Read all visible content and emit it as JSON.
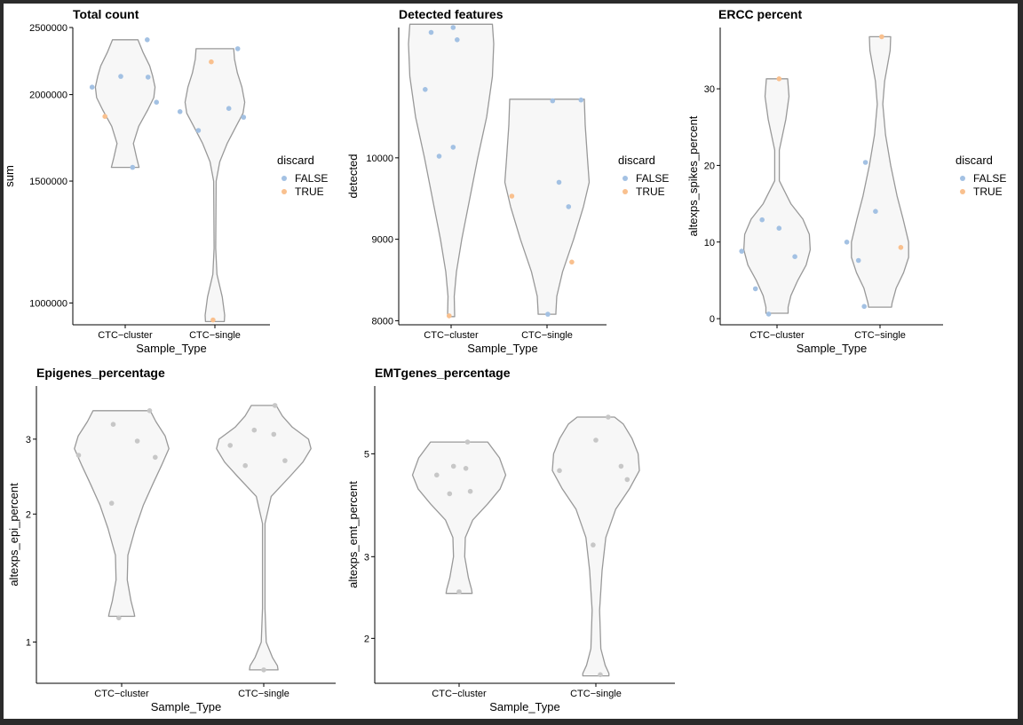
{
  "colors": {
    "false": "#a3c1e3",
    "true": "#f9c08e",
    "grey": "#c7c7c7",
    "violin_fill": "#f7f7f7",
    "violin_stroke": "#999999"
  },
  "legend": {
    "title": "discard",
    "false_label": "FALSE",
    "true_label": "TRUE"
  },
  "chart_data": [
    {
      "type": "violin",
      "title": "Total count",
      "xlabel": "Sample_Type",
      "ylabel": "sum",
      "scale": "log10",
      "ylim": [
        930000,
        2500000
      ],
      "yticks": [
        1000000,
        1500000,
        2000000,
        2500000
      ],
      "ytick_labels": [
        "1000000",
        "1500000",
        "2000000",
        "2500000"
      ],
      "categories": [
        "CTC−cluster",
        "CTC−single"
      ],
      "legend": true,
      "violin_profiles": [
        [
          [
            2400000,
            0.31
          ],
          [
            2300000,
            0.44
          ],
          [
            2200000,
            0.6
          ],
          [
            2130000,
            0.67
          ],
          [
            2050000,
            0.73
          ],
          [
            1980000,
            0.7
          ],
          [
            1900000,
            0.55
          ],
          [
            1800000,
            0.33
          ],
          [
            1700000,
            0.2
          ],
          [
            1620000,
            0.28
          ],
          [
            1570000,
            0.34
          ]
        ],
        [
          [
            2330000,
            0.46
          ],
          [
            2250000,
            0.48
          ],
          [
            2150000,
            0.55
          ],
          [
            2050000,
            0.66
          ],
          [
            1950000,
            0.73
          ],
          [
            1880000,
            0.69
          ],
          [
            1800000,
            0.52
          ],
          [
            1700000,
            0.3
          ],
          [
            1600000,
            0.12
          ],
          [
            1500000,
            0.03
          ],
          [
            1200000,
            0.02
          ],
          [
            1100000,
            0.05
          ],
          [
            1020000,
            0.18
          ],
          [
            960000,
            0.24
          ],
          [
            940000,
            0.23
          ]
        ]
      ],
      "points": [
        {
          "cat": 0,
          "jx": 0.6,
          "y": 2400000,
          "discard": false
        },
        {
          "cat": 0,
          "jx": 0.62,
          "y": 2120000,
          "discard": false
        },
        {
          "cat": 0,
          "jx": -0.12,
          "y": 2125000,
          "discard": false
        },
        {
          "cat": 0,
          "jx": -0.9,
          "y": 2050000,
          "discard": false
        },
        {
          "cat": 0,
          "jx": 0.85,
          "y": 1950000,
          "discard": false
        },
        {
          "cat": 0,
          "jx": -0.55,
          "y": 1860000,
          "discard": true
        },
        {
          "cat": 0,
          "jx": 0.2,
          "y": 1570000,
          "discard": false
        },
        {
          "cat": 1,
          "jx": 0.62,
          "y": 2330000,
          "discard": false
        },
        {
          "cat": 1,
          "jx": -0.1,
          "y": 2230000,
          "discard": true
        },
        {
          "cat": 1,
          "jx": -0.95,
          "y": 1890000,
          "discard": false
        },
        {
          "cat": 1,
          "jx": 0.38,
          "y": 1910000,
          "discard": false
        },
        {
          "cat": 1,
          "jx": 0.78,
          "y": 1855000,
          "discard": false
        },
        {
          "cat": 1,
          "jx": -0.45,
          "y": 1775000,
          "discard": false
        },
        {
          "cat": 1,
          "jx": -0.05,
          "y": 945000,
          "discard": true
        }
      ]
    },
    {
      "type": "violin",
      "title": "Detected features",
      "xlabel": "Sample_Type",
      "ylabel": "detected",
      "scale": "linear",
      "ylim": [
        7950,
        11600
      ],
      "yticks": [
        8000,
        9000,
        10000
      ],
      "ytick_labels": [
        "8000",
        "9000",
        "10000"
      ],
      "categories": [
        "CTC−cluster",
        "CTC−single"
      ],
      "legend": true,
      "violin_profiles": [
        [
          [
            11640,
            0.93
          ],
          [
            11400,
            0.96
          ],
          [
            11000,
            0.93
          ],
          [
            10500,
            0.8
          ],
          [
            10000,
            0.6
          ],
          [
            9500,
            0.42
          ],
          [
            9000,
            0.24
          ],
          [
            8600,
            0.12
          ],
          [
            8300,
            0.07
          ],
          [
            8050,
            0.08
          ]
        ],
        [
          [
            10720,
            0.84
          ],
          [
            10400,
            0.86
          ],
          [
            10000,
            0.91
          ],
          [
            9700,
            0.95
          ],
          [
            9400,
            0.82
          ],
          [
            9000,
            0.6
          ],
          [
            8600,
            0.35
          ],
          [
            8300,
            0.22
          ],
          [
            8100,
            0.2
          ],
          [
            8080,
            0.2
          ]
        ]
      ],
      "points": [
        {
          "cat": 0,
          "jx": -0.5,
          "y": 11540,
          "discard": false
        },
        {
          "cat": 0,
          "jx": 0.05,
          "y": 11600,
          "discard": false
        },
        {
          "cat": 0,
          "jx": 0.15,
          "y": 11450,
          "discard": false
        },
        {
          "cat": 0,
          "jx": -0.65,
          "y": 10840,
          "discard": false
        },
        {
          "cat": 0,
          "jx": -0.3,
          "y": 10020,
          "discard": false
        },
        {
          "cat": 0,
          "jx": 0.05,
          "y": 10130,
          "discard": false
        },
        {
          "cat": 0,
          "jx": -0.05,
          "y": 8060,
          "discard": true
        },
        {
          "cat": 1,
          "jx": 0.14,
          "y": 10700,
          "discard": false
        },
        {
          "cat": 1,
          "jx": 0.85,
          "y": 10710,
          "discard": false
        },
        {
          "cat": 1,
          "jx": 0.3,
          "y": 9700,
          "discard": false
        },
        {
          "cat": 1,
          "jx": -0.88,
          "y": 9530,
          "discard": true
        },
        {
          "cat": 1,
          "jx": 0.54,
          "y": 9400,
          "discard": false
        },
        {
          "cat": 1,
          "jx": 0.62,
          "y": 8720,
          "discard": true
        },
        {
          "cat": 1,
          "jx": 0.02,
          "y": 8080,
          "discard": false
        }
      ]
    },
    {
      "type": "violin",
      "title": "ERCC percent",
      "xlabel": "Sample_Type",
      "ylabel": "altexps_spikes_percent",
      "scale": "linear",
      "ylim": [
        -0.8,
        38
      ],
      "yticks": [
        0,
        10,
        20,
        30
      ],
      "ytick_labels": [
        "0",
        "10",
        "20",
        "30"
      ],
      "categories": [
        "CTC−cluster",
        "CTC−single"
      ],
      "legend": true,
      "violin_profiles": [
        [
          [
            31.3,
            0.23
          ],
          [
            29,
            0.26
          ],
          [
            26,
            0.19
          ],
          [
            22,
            0.05
          ],
          [
            18,
            0.05
          ],
          [
            15,
            0.3
          ],
          [
            13,
            0.56
          ],
          [
            11,
            0.7
          ],
          [
            9,
            0.72
          ],
          [
            7,
            0.63
          ],
          [
            5,
            0.45
          ],
          [
            3,
            0.3
          ],
          [
            1.5,
            0.24
          ],
          [
            0.7,
            0.24
          ]
        ],
        [
          [
            36.8,
            0.23
          ],
          [
            35,
            0.22
          ],
          [
            31,
            0.1
          ],
          [
            28,
            0.06
          ],
          [
            24,
            0.12
          ],
          [
            20,
            0.23
          ],
          [
            16,
            0.37
          ],
          [
            13,
            0.5
          ],
          [
            10,
            0.62
          ],
          [
            8,
            0.62
          ],
          [
            6,
            0.51
          ],
          [
            4,
            0.35
          ],
          [
            2,
            0.26
          ],
          [
            1.5,
            0.25
          ]
        ]
      ],
      "points": [
        {
          "cat": 0,
          "jx": 0.05,
          "y": 31.3,
          "discard": true
        },
        {
          "cat": 0,
          "jx": -0.36,
          "y": 12.9,
          "discard": false
        },
        {
          "cat": 0,
          "jx": 0.05,
          "y": 11.8,
          "discard": false
        },
        {
          "cat": 0,
          "jx": -0.85,
          "y": 8.8,
          "discard": false
        },
        {
          "cat": 0,
          "jx": 0.43,
          "y": 8.1,
          "discard": false
        },
        {
          "cat": 0,
          "jx": -0.52,
          "y": 3.9,
          "discard": false
        },
        {
          "cat": 0,
          "jx": -0.2,
          "y": 0.6,
          "discard": false
        },
        {
          "cat": 1,
          "jx": 0.04,
          "y": 36.8,
          "discard": true
        },
        {
          "cat": 1,
          "jx": -0.35,
          "y": 20.4,
          "discard": false
        },
        {
          "cat": 1,
          "jx": -0.11,
          "y": 14.0,
          "discard": false
        },
        {
          "cat": 1,
          "jx": -0.8,
          "y": 10.0,
          "discard": false
        },
        {
          "cat": 1,
          "jx": 0.5,
          "y": 9.3,
          "discard": true
        },
        {
          "cat": 1,
          "jx": -0.52,
          "y": 7.6,
          "discard": false
        },
        {
          "cat": 1,
          "jx": -0.38,
          "y": 1.6,
          "discard": false
        }
      ]
    },
    {
      "type": "violin",
      "title": "Epigenes_percentage",
      "xlabel": "Sample_Type",
      "ylabel": "altexps_epi_percent",
      "scale": "log10",
      "ylim": [
        0.8,
        4.0
      ],
      "yticks": [
        1,
        2,
        3
      ],
      "ytick_labels": [
        "1",
        "2",
        "3"
      ],
      "categories": [
        "CTC−cluster",
        "CTC−single"
      ],
      "legend": false,
      "violin_profiles": [
        [
          [
            3.5,
            0.46
          ],
          [
            3.3,
            0.55
          ],
          [
            3.05,
            0.7
          ],
          [
            2.85,
            0.76
          ],
          [
            2.6,
            0.64
          ],
          [
            2.35,
            0.5
          ],
          [
            2.1,
            0.35
          ],
          [
            1.85,
            0.22
          ],
          [
            1.6,
            0.1
          ],
          [
            1.4,
            0.09
          ],
          [
            1.25,
            0.15
          ],
          [
            1.17,
            0.2
          ],
          [
            1.15,
            0.21
          ]
        ],
        [
          [
            3.6,
            0.2
          ],
          [
            3.4,
            0.3
          ],
          [
            3.2,
            0.46
          ],
          [
            3.0,
            0.72
          ],
          [
            2.85,
            0.76
          ],
          [
            2.65,
            0.63
          ],
          [
            2.45,
            0.42
          ],
          [
            2.2,
            0.12
          ],
          [
            1.9,
            0.02
          ],
          [
            1.2,
            0.02
          ],
          [
            1.0,
            0.04
          ],
          [
            0.92,
            0.14
          ],
          [
            0.88,
            0.22
          ],
          [
            0.86,
            0.23
          ]
        ]
      ],
      "points": [
        {
          "cat": 0,
          "jx": 0.5,
          "y": 3.5,
          "discard": false
        },
        {
          "cat": 0,
          "jx": -0.15,
          "y": 3.25,
          "discard": false
        },
        {
          "cat": 0,
          "jx": 0.28,
          "y": 2.97,
          "discard": false
        },
        {
          "cat": 0,
          "jx": -0.77,
          "y": 2.75,
          "discard": false
        },
        {
          "cat": 0,
          "jx": 0.6,
          "y": 2.72,
          "discard": false
        },
        {
          "cat": 0,
          "jx": -0.18,
          "y": 2.12,
          "discard": false
        },
        {
          "cat": 0,
          "jx": -0.05,
          "y": 1.14,
          "discard": false
        },
        {
          "cat": 1,
          "jx": 0.2,
          "y": 3.6,
          "discard": false
        },
        {
          "cat": 1,
          "jx": -0.17,
          "y": 3.15,
          "discard": false
        },
        {
          "cat": 1,
          "jx": 0.18,
          "y": 3.08,
          "discard": false
        },
        {
          "cat": 1,
          "jx": -0.6,
          "y": 2.9,
          "discard": false
        },
        {
          "cat": 1,
          "jx": 0.38,
          "y": 2.67,
          "discard": false
        },
        {
          "cat": 1,
          "jx": -0.33,
          "y": 2.6,
          "discard": false
        },
        {
          "cat": 1,
          "jx": 0.0,
          "y": 0.86,
          "discard": false
        }
      ]
    },
    {
      "type": "violin",
      "title": "EMTgenes_percentage",
      "xlabel": "Sample_Type",
      "ylabel": "altexps_emt_percent",
      "scale": "log10",
      "ylim": [
        1.6,
        7.0
      ],
      "yticks": [
        2,
        3,
        5
      ],
      "ytick_labels": [
        "2",
        "3",
        "5"
      ],
      "categories": [
        "CTC−cluster",
        "CTC−single"
      ],
      "legend": false,
      "violin_profiles": [
        [
          [
            5.3,
            0.46
          ],
          [
            4.9,
            0.65
          ],
          [
            4.5,
            0.75
          ],
          [
            4.2,
            0.66
          ],
          [
            3.9,
            0.46
          ],
          [
            3.6,
            0.22
          ],
          [
            3.3,
            0.1
          ],
          [
            3.0,
            0.09
          ],
          [
            2.7,
            0.15
          ],
          [
            2.55,
            0.2
          ],
          [
            2.5,
            0.21
          ]
        ],
        [
          [
            6.0,
            0.3
          ],
          [
            5.8,
            0.44
          ],
          [
            5.4,
            0.58
          ],
          [
            5.0,
            0.68
          ],
          [
            4.6,
            0.7
          ],
          [
            4.2,
            0.54
          ],
          [
            3.8,
            0.32
          ],
          [
            3.3,
            0.16
          ],
          [
            2.8,
            0.1
          ],
          [
            2.3,
            0.06
          ],
          [
            1.9,
            0.08
          ],
          [
            1.75,
            0.15
          ],
          [
            1.68,
            0.21
          ],
          [
            1.66,
            0.21
          ]
        ]
      ],
      "points": [
        {
          "cat": 0,
          "jx": 0.15,
          "y": 5.3,
          "discard": false
        },
        {
          "cat": 0,
          "jx": -0.1,
          "y": 4.7,
          "discard": false
        },
        {
          "cat": 0,
          "jx": 0.12,
          "y": 4.65,
          "discard": false
        },
        {
          "cat": 0,
          "jx": -0.4,
          "y": 4.5,
          "discard": false
        },
        {
          "cat": 0,
          "jx": -0.17,
          "y": 4.1,
          "discard": false
        },
        {
          "cat": 0,
          "jx": 0.2,
          "y": 4.15,
          "discard": false
        },
        {
          "cat": 0,
          "jx": 0.0,
          "y": 2.52,
          "discard": false
        },
        {
          "cat": 1,
          "jx": 0.22,
          "y": 6.0,
          "discard": false
        },
        {
          "cat": 1,
          "jx": 0.0,
          "y": 5.35,
          "discard": false
        },
        {
          "cat": 1,
          "jx": 0.45,
          "y": 4.7,
          "discard": false
        },
        {
          "cat": 1,
          "jx": -0.65,
          "y": 4.6,
          "discard": false
        },
        {
          "cat": 1,
          "jx": 0.56,
          "y": 4.4,
          "discard": false
        },
        {
          "cat": 1,
          "jx": -0.05,
          "y": 3.18,
          "discard": false
        },
        {
          "cat": 1,
          "jx": 0.08,
          "y": 1.67,
          "discard": false
        }
      ]
    }
  ]
}
